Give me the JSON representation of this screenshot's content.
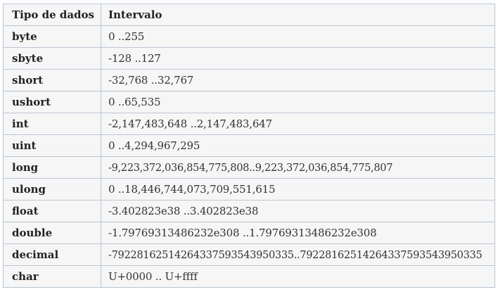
{
  "table": {
    "headers": {
      "type": "Tipo de dados",
      "range": "Intervalo"
    },
    "rows": [
      {
        "type": "byte",
        "range": "0 ..255"
      },
      {
        "type": "sbyte",
        "range": "-128 ..127"
      },
      {
        "type": "short",
        "range": "-32,768 ..32,767"
      },
      {
        "type": "ushort",
        "range": "0 ..65,535"
      },
      {
        "type": "int",
        "range": "-2,147,483,648 ..2,147,483,647"
      },
      {
        "type": "uint",
        "range": "0 ..4,294,967,295"
      },
      {
        "type": "long",
        "range": "-9,223,372,036,854,775,808..9,223,372,036,854,775,807"
      },
      {
        "type": "ulong",
        "range": "0 ..18,446,744,073,709,551,615"
      },
      {
        "type": "float",
        "range": "-3.402823e38 ..3.402823e38"
      },
      {
        "type": "double",
        "range": "-1.79769313486232e308 ..1.79769313486232e308"
      },
      {
        "type": "decimal",
        "range": "-79228162514264337593543950335..79228162514264337593543950335"
      },
      {
        "type": "char",
        "range": "U+0000 .. U+ffff"
      }
    ]
  },
  "colors": {
    "border": "#b9c6d3",
    "text": "#2b2b2b",
    "background": "#f4f4f4"
  }
}
